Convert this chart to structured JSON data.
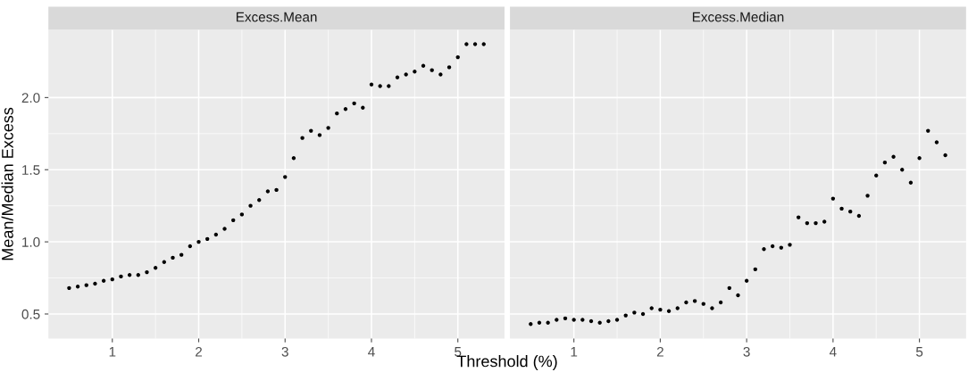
{
  "chart_data": [
    {
      "type": "scatter",
      "title": "Excess.Mean",
      "xlabel": "Threshold (%)",
      "ylabel": "Mean/Median Excess",
      "xlim": [
        0.26,
        5.54
      ],
      "ylim": [
        0.33,
        2.47
      ],
      "xticks": [
        1,
        2,
        3,
        4,
        5
      ],
      "yticks": [
        0.5,
        {
          "value": 1,
          "label": "1.0"
        },
        1.5,
        {
          "value": 2,
          "label": "2.0"
        }
      ],
      "grid": true,
      "marker": "circle",
      "x": [
        0.5,
        0.6,
        0.7,
        0.8,
        0.9,
        1.0,
        1.1,
        1.2,
        1.3,
        1.4,
        1.5,
        1.6,
        1.7,
        1.8,
        1.9,
        2.0,
        2.1,
        2.2,
        2.3,
        2.4,
        2.5,
        2.6,
        2.7,
        2.8,
        2.9,
        3.0,
        3.1,
        3.2,
        3.3,
        3.4,
        3.5,
        3.6,
        3.7,
        3.8,
        3.9,
        4.0,
        4.1,
        4.2,
        4.3,
        4.4,
        4.5,
        4.6,
        4.7,
        4.8,
        4.9,
        5.0,
        5.1,
        5.2,
        5.3
      ],
      "series": [
        {
          "color": "#000000",
          "values": [
            0.68,
            0.69,
            0.7,
            0.71,
            0.73,
            0.74,
            0.76,
            0.77,
            0.77,
            0.79,
            0.82,
            0.86,
            0.89,
            0.91,
            0.97,
            1.0,
            1.02,
            1.05,
            1.09,
            1.15,
            1.19,
            1.25,
            1.29,
            1.35,
            1.36,
            1.45,
            1.58,
            1.72,
            1.77,
            1.74,
            1.79,
            1.89,
            1.92,
            1.96,
            1.93,
            2.09,
            2.08,
            2.08,
            2.14,
            2.16,
            2.18,
            2.22,
            2.19,
            2.16,
            2.21,
            2.28,
            2.37,
            2.37,
            2.37
          ]
        }
      ]
    },
    {
      "type": "scatter",
      "title": "Excess.Median",
      "xlim": [
        0.26,
        5.54
      ],
      "ylim": [
        0.33,
        2.47
      ],
      "xticks": [
        1,
        2,
        3,
        4,
        5
      ],
      "yticks": [
        0.5,
        1,
        1.5,
        2
      ],
      "grid": true,
      "marker": "circle",
      "tick_labels": "x",
      "x": [
        0.5,
        0.6,
        0.7,
        0.8,
        0.9,
        1.0,
        1.1,
        1.2,
        1.3,
        1.4,
        1.5,
        1.6,
        1.7,
        1.8,
        1.9,
        2.0,
        2.1,
        2.2,
        2.3,
        2.4,
        2.5,
        2.6,
        2.7,
        2.8,
        2.9,
        3.0,
        3.1,
        3.2,
        3.3,
        3.4,
        3.5,
        3.6,
        3.7,
        3.8,
        3.9,
        4.0,
        4.1,
        4.2,
        4.3,
        4.4,
        4.5,
        4.6,
        4.7,
        4.8,
        4.9,
        5.0,
        5.1,
        5.2,
        5.3
      ],
      "series": [
        {
          "color": "#000000",
          "values": [
            0.43,
            0.44,
            0.44,
            0.46,
            0.47,
            0.46,
            0.46,
            0.45,
            0.44,
            0.45,
            0.46,
            0.49,
            0.51,
            0.5,
            0.54,
            0.53,
            0.52,
            0.54,
            0.58,
            0.59,
            0.57,
            0.54,
            0.58,
            0.68,
            0.63,
            0.73,
            0.81,
            0.95,
            0.97,
            0.96,
            0.98,
            1.17,
            1.13,
            1.13,
            1.14,
            1.3,
            1.23,
            1.21,
            1.18,
            1.32,
            1.46,
            1.55,
            1.59,
            1.5,
            1.41,
            1.58,
            1.77,
            1.69,
            1.6
          ]
        }
      ]
    }
  ]
}
